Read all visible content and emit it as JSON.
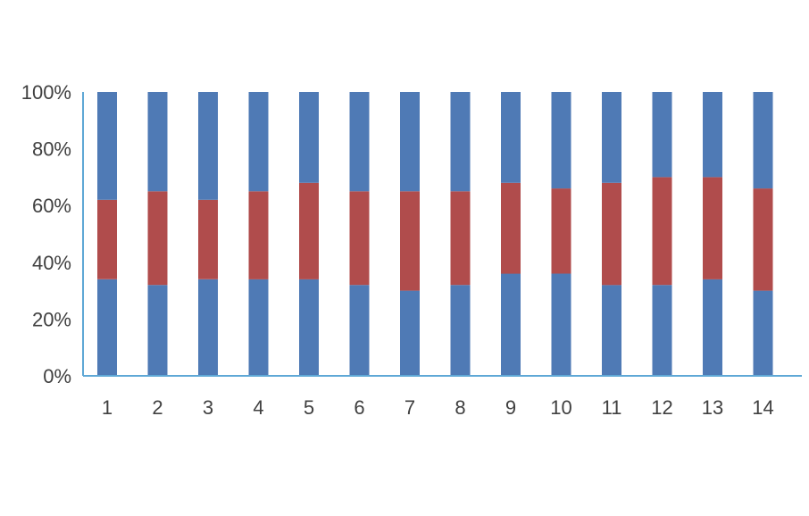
{
  "chart_data": {
    "type": "bar",
    "stacked": "percent",
    "categories": [
      "1",
      "2",
      "3",
      "4",
      "5",
      "6",
      "7",
      "8",
      "9",
      "10",
      "11",
      "12",
      "13",
      "14"
    ],
    "series": [
      {
        "color": "#4f7ab5",
        "values": [
          34,
          32,
          34,
          34,
          34,
          32,
          30,
          32,
          36,
          36,
          32,
          32,
          34,
          30
        ]
      },
      {
        "color": "#b04c4c",
        "values": [
          28,
          33,
          28,
          31,
          34,
          33,
          35,
          33,
          32,
          30,
          36,
          38,
          36,
          36
        ]
      },
      {
        "color": "#4f7ab5",
        "values": [
          38,
          35,
          38,
          35,
          32,
          35,
          35,
          35,
          32,
          34,
          32,
          30,
          30,
          34
        ]
      }
    ],
    "ylim": [
      0,
      100
    ],
    "yticks": [
      "0%",
      "20%",
      "40%",
      "60%",
      "80%",
      "100%"
    ],
    "title": "",
    "xlabel": "",
    "ylabel": "",
    "grid": false,
    "legend": "none"
  }
}
